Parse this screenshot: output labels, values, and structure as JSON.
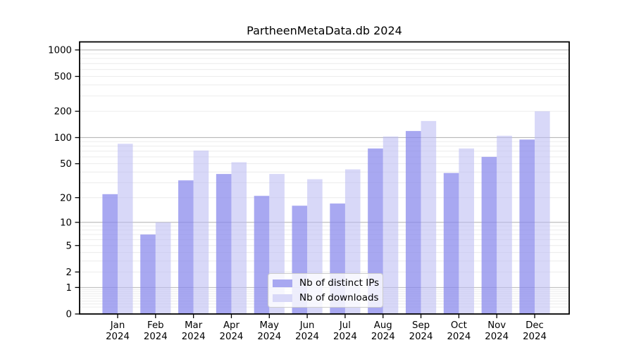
{
  "figure": {
    "title": "PartheenMetaData.db 2024",
    "background": "#ffffff"
  },
  "chart_data": {
    "type": "bar",
    "title": "PartheenMetaData.db 2024",
    "categories": [
      "Jan 2024",
      "Feb 2024",
      "Mar 2024",
      "Apr 2024",
      "May 2024",
      "Jun 2024",
      "Jul 2024",
      "Aug 2024",
      "Sep 2024",
      "Oct 2024",
      "Nov 2024",
      "Dec 2024"
    ],
    "series": [
      {
        "name": "Nb of distinct IPs",
        "values": [
          22,
          7,
          32,
          38,
          21,
          16,
          17,
          75,
          119,
          39,
          60,
          95
        ],
        "color": "#a8a8f1",
        "fill": "rgba(134,134,236,0.72)"
      },
      {
        "name": "Nb of downloads",
        "values": [
          85,
          10,
          71,
          52,
          38,
          33,
          43,
          103,
          155,
          75,
          105,
          200
        ],
        "color": "#d8d8f8",
        "fill": "rgba(186,186,243,0.56)"
      }
    ],
    "xlabel": "",
    "ylabel": "",
    "yscale": "log1p",
    "y_ticks": [
      0,
      1,
      2,
      5,
      10,
      20,
      50,
      100,
      200,
      500,
      1000
    ],
    "ylim": [
      0,
      1240
    ],
    "grid": true,
    "grid_major_color": "#b8b8b8",
    "grid_minor_color": "#ececec",
    "legend_position": "lower center"
  }
}
